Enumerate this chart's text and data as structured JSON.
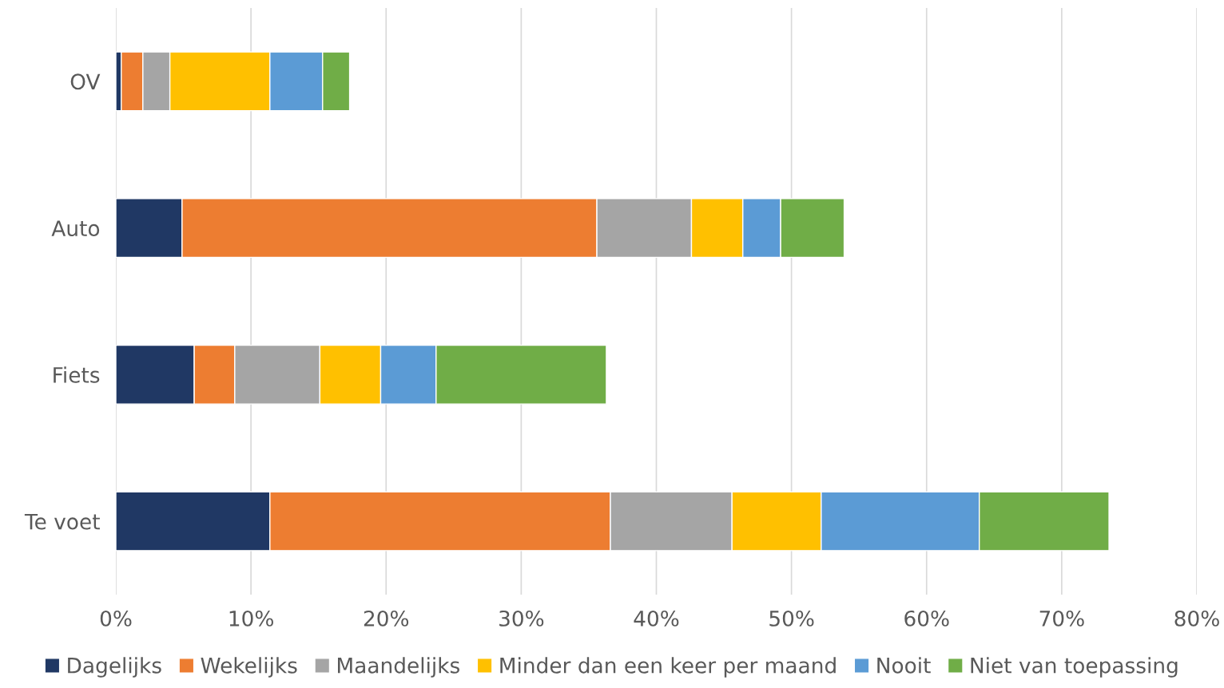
{
  "chart_data": {
    "type": "bar",
    "orientation": "horizontal",
    "stacked": true,
    "categories": [
      "OV",
      "Auto",
      "Fiets",
      "Te voet"
    ],
    "series": [
      {
        "name": "Dagelijks",
        "color": "#203864",
        "values": [
          0.4,
          4.9,
          5.8,
          11.4
        ]
      },
      {
        "name": "Wekelijks",
        "color": "#ed7d31",
        "values": [
          1.6,
          30.7,
          3.0,
          25.2
        ]
      },
      {
        "name": "Maandelijks",
        "color": "#a5a5a5",
        "values": [
          2.0,
          7.0,
          6.3,
          9.0
        ]
      },
      {
        "name": "Minder dan een keer per maand",
        "color": "#ffc000",
        "values": [
          7.4,
          3.8,
          4.5,
          6.6
        ]
      },
      {
        "name": "Nooit",
        "color": "#5b9bd5",
        "values": [
          3.9,
          2.8,
          4.1,
          11.7
        ]
      },
      {
        "name": "Niet van toepassing",
        "color": "#70ad47",
        "values": [
          2.0,
          4.7,
          12.6,
          9.6
        ]
      }
    ],
    "xlim": [
      0,
      80
    ],
    "xticks": [
      {
        "value": 0,
        "label": "0%"
      },
      {
        "value": 10,
        "label": "10%"
      },
      {
        "value": 20,
        "label": "20%"
      },
      {
        "value": 30,
        "label": "30%"
      },
      {
        "value": 40,
        "label": "40%"
      },
      {
        "value": 50,
        "label": "50%"
      },
      {
        "value": 60,
        "label": "60%"
      },
      {
        "value": 70,
        "label": "70%"
      },
      {
        "value": 80,
        "label": "80%"
      }
    ],
    "grid": "x",
    "legend": "bottom"
  }
}
